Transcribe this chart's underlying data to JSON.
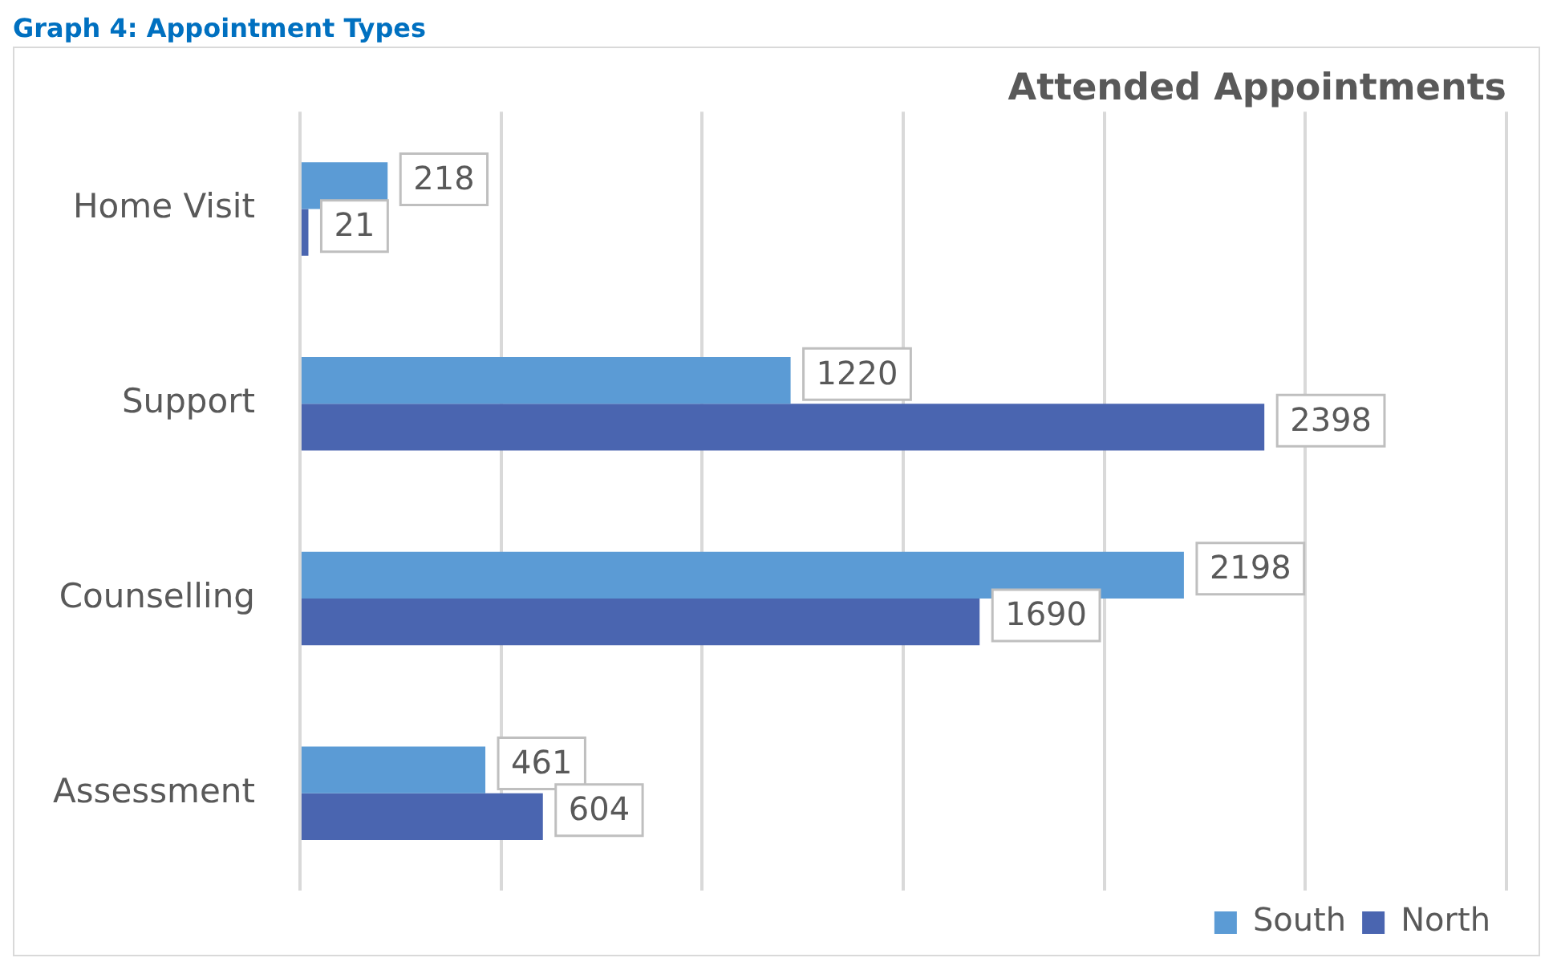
{
  "chart_data": {
    "type": "bar",
    "orientation": "horizontal",
    "title": "Graph 4: Appointment Types",
    "subtitle": "Attended Appointments",
    "categories": [
      "Home Visit",
      "Support",
      "Counselling",
      "Assessment"
    ],
    "series": [
      {
        "name": "South",
        "color": "#5b9bd5",
        "values": [
          218,
          1220,
          2198,
          461
        ]
      },
      {
        "name": "North",
        "color": "#4a65b0",
        "values": [
          21,
          2398,
          1690,
          604
        ]
      }
    ],
    "xlim": [
      0,
      3000
    ],
    "xticks": [
      0,
      500,
      1000,
      1500,
      2000,
      2500,
      3000
    ],
    "tick_labels": "y",
    "grid": "x",
    "legend": "bottom right",
    "data_labels": true
  }
}
